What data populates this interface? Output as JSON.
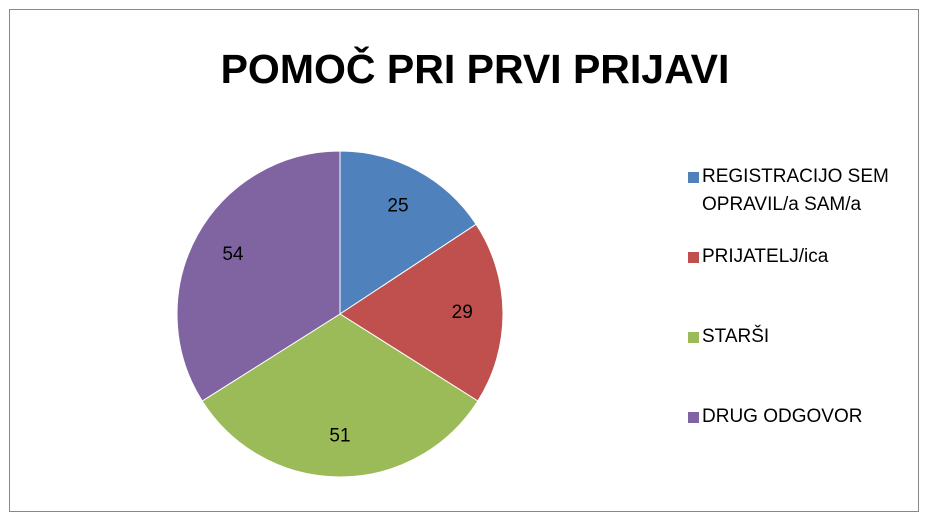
{
  "chart_data": {
    "type": "pie",
    "title": "POMOČ PRI PRVI PRIJAVI",
    "categories": [
      "REGISTRACIJO SEM OPRAVIL/a SAM/a",
      "PRIJATELJ/ica",
      "STARŠI",
      "DRUG ODGOVOR"
    ],
    "values": [
      25,
      29,
      51,
      54
    ],
    "colors": [
      "#4f81bd",
      "#c0504d",
      "#9bbb59",
      "#8064a2"
    ],
    "legend": "right"
  }
}
